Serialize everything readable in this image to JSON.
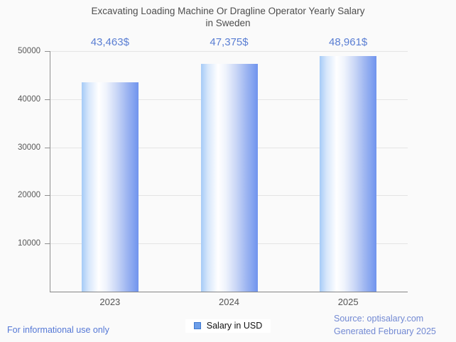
{
  "page": {
    "background": "#fafafa",
    "footer_left": "For informational use only",
    "source_line1": "Source: optisalary.com",
    "source_line2": "Generated February 2025"
  },
  "legend": {
    "label": "Salary in USD",
    "swatch_fill": "#6d9ee8",
    "swatch_border": "#3d78d0"
  },
  "chart_data": {
    "type": "bar",
    "title": "Excavating Loading Machine Or Dragline Operator Yearly Salary in Sweden",
    "title_lines": [
      "Excavating Loading Machine Or Dragline Operator Yearly Salary",
      "in Sweden"
    ],
    "categories": [
      "2023",
      "2024",
      "2025"
    ],
    "series": [
      {
        "name": "Salary in USD",
        "values": [
          43463,
          47375,
          48961
        ]
      }
    ],
    "value_labels": [
      "43,463$",
      "47,375$",
      "48,961$"
    ],
    "xlabel": "",
    "ylabel": "",
    "ylim": [
      0,
      50000
    ],
    "yticks": [
      10000,
      20000,
      30000,
      40000,
      50000
    ],
    "grid": true,
    "legend_position": "bottom",
    "colors": {
      "value_label_text": "#5a7ed3",
      "bar_gradient_left": "#a5cbf7",
      "bar_gradient_mid": "#ffffff",
      "bar_gradient_right": "#7094ee",
      "gridline": "#e4e4e4",
      "axis": "#8f8f8f",
      "title_text": "#4d4d4d",
      "tick_text": "#585858"
    }
  }
}
